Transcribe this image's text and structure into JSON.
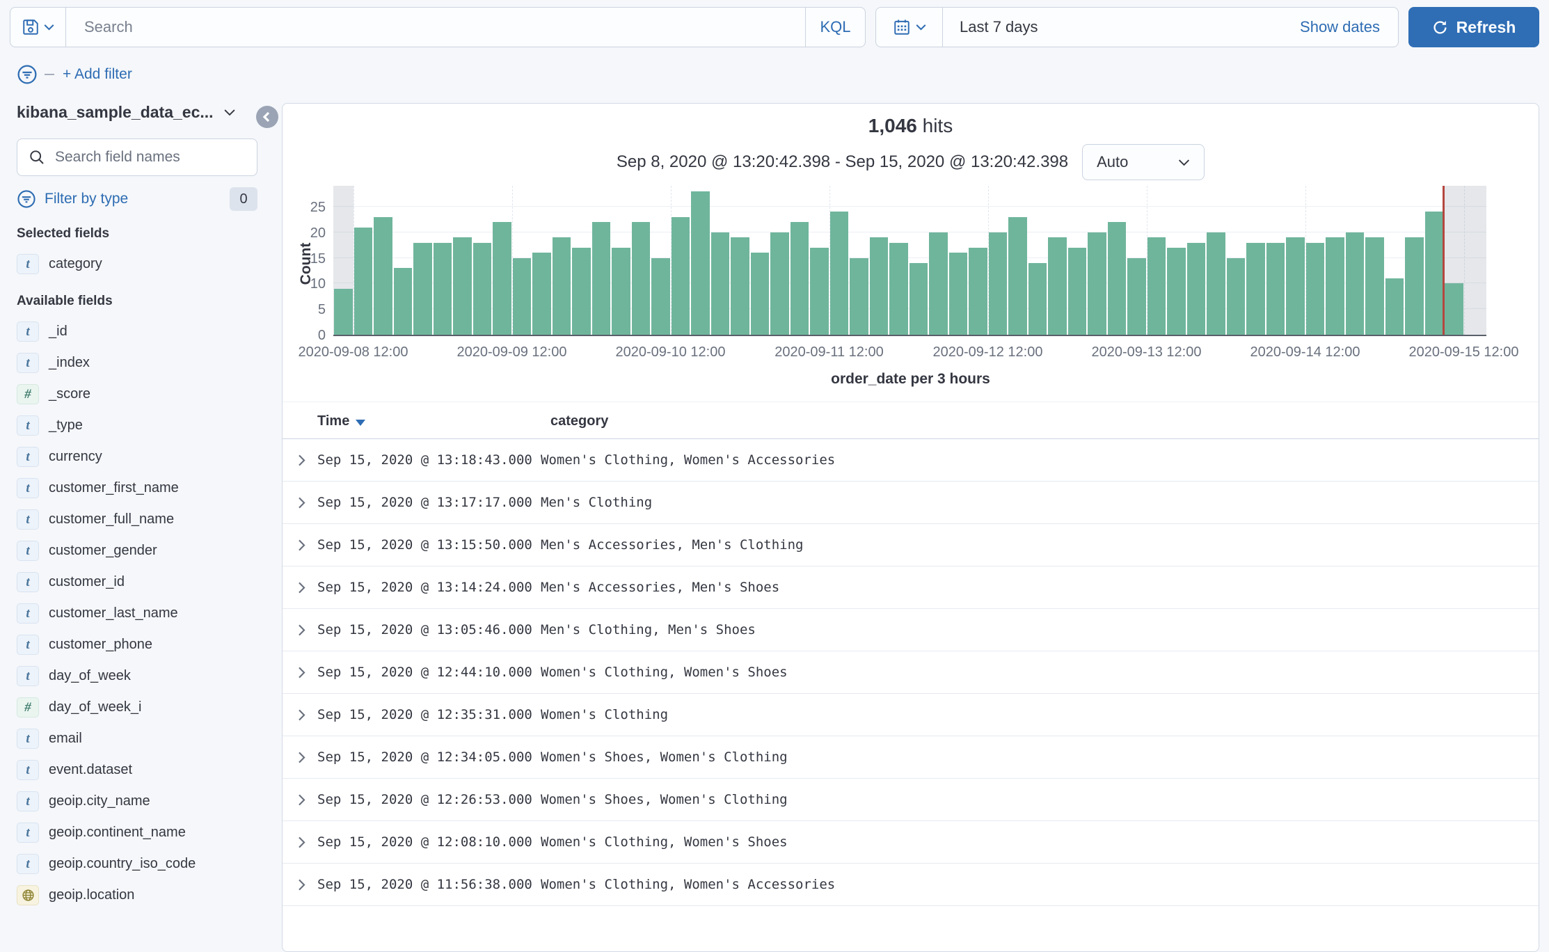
{
  "topbar": {
    "search_placeholder": "Search",
    "kql_label": "KQL",
    "time_range": "Last 7 days",
    "show_dates_label": "Show dates",
    "refresh_label": "Refresh"
  },
  "filter_bar": {
    "add_filter_label": "+ Add filter"
  },
  "sidebar": {
    "index_pattern": "kibana_sample_data_ec...",
    "field_search_placeholder": "Search field names",
    "filter_by_type_label": "Filter by type",
    "filter_by_type_count": "0",
    "selected_heading": "Selected fields",
    "available_heading": "Available fields",
    "selected_fields": [
      {
        "name": "category",
        "type": "t"
      }
    ],
    "available_fields": [
      {
        "name": "_id",
        "type": "t"
      },
      {
        "name": "_index",
        "type": "t"
      },
      {
        "name": "_score",
        "type": "num"
      },
      {
        "name": "_type",
        "type": "t"
      },
      {
        "name": "currency",
        "type": "t"
      },
      {
        "name": "customer_first_name",
        "type": "t"
      },
      {
        "name": "customer_full_name",
        "type": "t"
      },
      {
        "name": "customer_gender",
        "type": "t"
      },
      {
        "name": "customer_id",
        "type": "t"
      },
      {
        "name": "customer_last_name",
        "type": "t"
      },
      {
        "name": "customer_phone",
        "type": "t"
      },
      {
        "name": "day_of_week",
        "type": "t"
      },
      {
        "name": "day_of_week_i",
        "type": "num"
      },
      {
        "name": "email",
        "type": "t"
      },
      {
        "name": "event.dataset",
        "type": "t"
      },
      {
        "name": "geoip.city_name",
        "type": "t"
      },
      {
        "name": "geoip.continent_name",
        "type": "t"
      },
      {
        "name": "geoip.country_iso_code",
        "type": "t"
      },
      {
        "name": "geoip.location",
        "type": "geo"
      }
    ],
    "badge_glyphs": {
      "t": "t",
      "num": "#",
      "geo": "globe-icon"
    }
  },
  "main": {
    "hits_count": "1,046",
    "hits_label": "hits",
    "date_range": "Sep 8, 2020 @ 13:20:42.398 - Sep 15, 2020 @ 13:20:42.398",
    "interval_selected": "Auto"
  },
  "chart_data": {
    "type": "bar",
    "title": "",
    "xlabel": "order_date per 3 hours",
    "ylabel": "Count",
    "ylim": [
      0,
      28
    ],
    "y_ticks": [
      0,
      5,
      10,
      15,
      20,
      25
    ],
    "x_tick_labels": [
      "2020-09-08 12:00",
      "2020-09-09 12:00",
      "2020-09-10 12:00",
      "2020-09-11 12:00",
      "2020-09-12 12:00",
      "2020-09-13 12:00",
      "2020-09-14 12:00",
      "2020-09-15 12:00"
    ],
    "bucket_interval": "3 hours",
    "values": [
      9,
      21,
      23,
      13,
      18,
      18,
      19,
      18,
      22,
      15,
      16,
      19,
      17,
      22,
      17,
      22,
      15,
      23,
      28,
      20,
      19,
      16,
      20,
      22,
      17,
      24,
      15,
      19,
      18,
      14,
      20,
      16,
      17,
      20,
      23,
      14,
      19,
      17,
      20,
      22,
      15,
      19,
      17,
      18,
      20,
      15,
      18,
      18,
      19,
      18,
      19,
      20,
      19,
      11,
      19,
      24,
      10
    ],
    "grid": true,
    "bar_color": "#6fb59c",
    "current_time_marker_color": "#b4473f",
    "out_of_range_band_color": "rgba(150,158,172,0.25)"
  },
  "table": {
    "columns": [
      "Time",
      "category"
    ],
    "sorted_column": "Time",
    "sort_direction": "desc",
    "rows": [
      {
        "time": "Sep 15, 2020 @ 13:18:43.000",
        "category": "Women's Clothing, Women's Accessories"
      },
      {
        "time": "Sep 15, 2020 @ 13:17:17.000",
        "category": "Men's Clothing"
      },
      {
        "time": "Sep 15, 2020 @ 13:15:50.000",
        "category": "Men's Accessories, Men's Clothing"
      },
      {
        "time": "Sep 15, 2020 @ 13:14:24.000",
        "category": "Men's Accessories, Men's Shoes"
      },
      {
        "time": "Sep 15, 2020 @ 13:05:46.000",
        "category": "Men's Clothing, Men's Shoes"
      },
      {
        "time": "Sep 15, 2020 @ 12:44:10.000",
        "category": "Women's Clothing, Women's Shoes"
      },
      {
        "time": "Sep 15, 2020 @ 12:35:31.000",
        "category": "Women's Clothing"
      },
      {
        "time": "Sep 15, 2020 @ 12:34:05.000",
        "category": "Women's Shoes, Women's Clothing"
      },
      {
        "time": "Sep 15, 2020 @ 12:26:53.000",
        "category": "Women's Shoes, Women's Clothing"
      },
      {
        "time": "Sep 15, 2020 @ 12:08:10.000",
        "category": "Women's Clothing, Women's Shoes"
      },
      {
        "time": "Sep 15, 2020 @ 11:56:38.000",
        "category": "Women's Clothing, Women's Accessories"
      }
    ]
  },
  "colors": {
    "accent_blue": "#2f6eb5",
    "bar_green": "#6fb59c",
    "time_marker_red": "#b4473f",
    "page_background": "#f5f7fa",
    "panel_border": "#d3dae6"
  }
}
